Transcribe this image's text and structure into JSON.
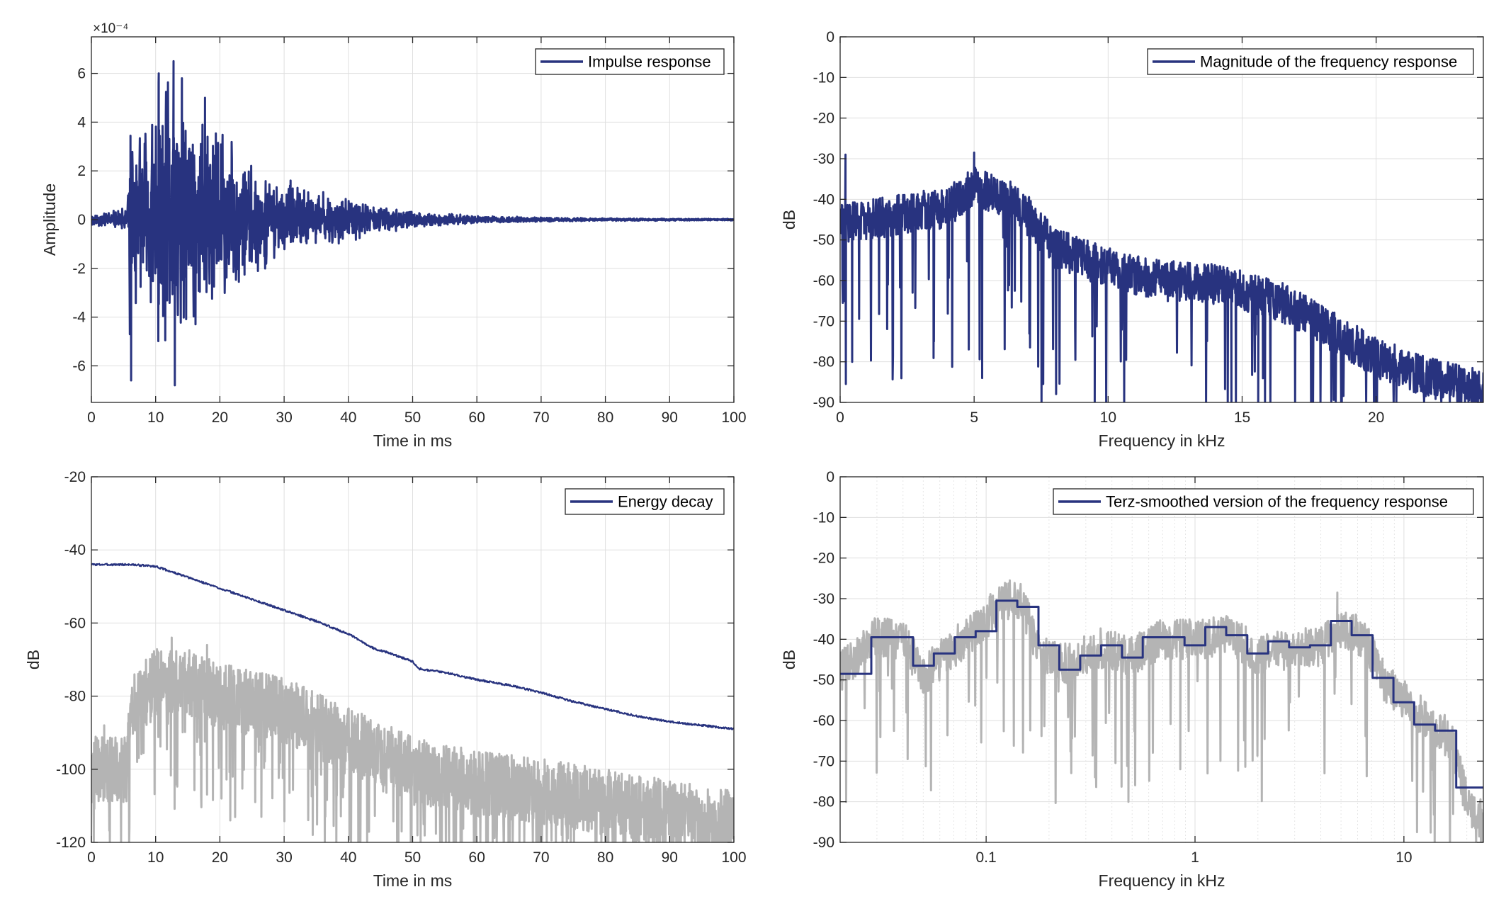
{
  "colors": {
    "primary": "#28337f",
    "secondary": "#b4b4b4",
    "axis": "#262626",
    "grid": "#dfdfdf"
  },
  "chart_data": [
    {
      "id": "impulse",
      "type": "line",
      "title": "",
      "xlabel": "Time in ms",
      "ylabel": "Amplitude",
      "exponent_label": "×10⁻⁴",
      "xlim": [
        0,
        100
      ],
      "ylim": [
        -7.5,
        7.5
      ],
      "xticks": [
        0,
        10,
        20,
        30,
        40,
        50,
        60,
        70,
        80,
        90,
        100
      ],
      "xtick_labels": [
        "0",
        "10",
        "20",
        "30",
        "40",
        "50",
        "60",
        "70",
        "80",
        "90",
        "100"
      ],
      "yticks": [
        -6,
        -4,
        -2,
        0,
        2,
        4,
        6
      ],
      "ytick_labels": [
        "-6",
        "-4",
        "-2",
        "0",
        "2",
        "4",
        "6"
      ],
      "grid": true,
      "legend": {
        "position": "top-right",
        "entries": [
          "Impulse response"
        ]
      },
      "series": [
        {
          "name": "Impulse response",
          "color": "#28337f",
          "style": "noise",
          "seed": 11,
          "samples": 2400,
          "bias": 0.0,
          "noise_min": -7.5,
          "noise_max": 7.5,
          "envelope": [
            [
              0,
              0.3
            ],
            [
              3,
              0.4
            ],
            [
              5.6,
              0.5
            ],
            [
              6,
              4.5
            ],
            [
              8,
              3.8
            ],
            [
              10,
              5.8
            ],
            [
              12.5,
              6.4
            ],
            [
              15,
              5.5
            ],
            [
              18,
              4.6
            ],
            [
              22,
              3.4
            ],
            [
              26,
              2.2
            ],
            [
              30,
              1.7
            ],
            [
              35,
              1.3
            ],
            [
              40,
              1.0
            ],
            [
              45,
              0.6
            ],
            [
              50,
              0.35
            ],
            [
              60,
              0.18
            ],
            [
              70,
              0.1
            ],
            [
              80,
              0.06
            ],
            [
              100,
              0.04
            ]
          ],
          "spikes": [
            [
              6.1,
              -6.6
            ],
            [
              12.7,
              6.5
            ],
            [
              12.9,
              -6.8
            ],
            [
              10.4,
              6.0
            ],
            [
              5.9,
              -4.7
            ],
            [
              14.0,
              5.8
            ],
            [
              17.6,
              5.0
            ]
          ]
        }
      ]
    },
    {
      "id": "magnitude",
      "type": "line",
      "title": "",
      "xlabel": "Frequency in kHz",
      "ylabel": "dB",
      "xlim": [
        0,
        24
      ],
      "ylim": [
        -90,
        0
      ],
      "xticks": [
        0,
        5,
        10,
        15,
        20
      ],
      "xtick_labels": [
        "0",
        "5",
        "10",
        "15",
        "20"
      ],
      "yticks": [
        0,
        -10,
        -20,
        -30,
        -40,
        -50,
        -60,
        -70,
        -80,
        -90
      ],
      "ytick_labels": [
        "0",
        "-10",
        "-20",
        "-30",
        "-40",
        "-50",
        "-60",
        "-70",
        "-80",
        "-90"
      ],
      "grid": true,
      "legend": {
        "position": "top-right",
        "entries": [
          "Magnitude of the frequency response"
        ]
      },
      "series": [
        {
          "name": "Magnitude of the frequency response",
          "color": "#28337f",
          "style": "trend_noise",
          "seed": 29,
          "samples": 1900,
          "trend": [
            [
              0,
              -46
            ],
            [
              2,
              -44
            ],
            [
              4,
              -42
            ],
            [
              5,
              -37
            ],
            [
              6.5,
              -40
            ],
            [
              8,
              -52
            ],
            [
              10,
              -57
            ],
            [
              12,
              -60
            ],
            [
              14,
              -61
            ],
            [
              16,
              -64
            ],
            [
              17,
              -67
            ],
            [
              18,
              -71
            ],
            [
              20,
              -79
            ],
            [
              22,
              -84
            ],
            [
              24,
              -87
            ]
          ],
          "noise_amp": 5,
          "dip_prob": 0.045,
          "dip_depth": [
            12,
            40
          ],
          "spikes": [
            [
              0.2,
              -29
            ],
            [
              5,
              -28.5
            ],
            [
              0.15,
              -65
            ],
            [
              0.45,
              -80
            ],
            [
              3.5,
              -75
            ],
            [
              5.3,
              -84
            ],
            [
              9.5,
              -90
            ],
            [
              14.6,
              -90
            ],
            [
              15.6,
              -90
            ]
          ]
        }
      ]
    },
    {
      "id": "energy_decay",
      "type": "line",
      "title": "",
      "xlabel": "Time in ms",
      "ylabel": "dB",
      "xlim": [
        0,
        100
      ],
      "ylim": [
        -120,
        -20
      ],
      "xticks": [
        0,
        10,
        20,
        30,
        40,
        50,
        60,
        70,
        80,
        90,
        100
      ],
      "xtick_labels": [
        "0",
        "10",
        "20",
        "30",
        "40",
        "50",
        "60",
        "70",
        "80",
        "90",
        "100"
      ],
      "yticks": [
        -20,
        -40,
        -60,
        -80,
        -100,
        -120
      ],
      "ytick_labels": [
        "-20",
        "-40",
        "-60",
        "-80",
        "-100",
        "-120"
      ],
      "grid": true,
      "legend": {
        "position": "top-right",
        "entries": [
          "Energy decay"
        ]
      },
      "series": [
        {
          "name": "",
          "color": "#b4b4b4",
          "style": "trend_noise",
          "seed": 47,
          "samples": 2400,
          "trend": [
            [
              0,
              -100
            ],
            [
              5.5,
              -100
            ],
            [
              6,
              -82
            ],
            [
              10,
              -76
            ],
            [
              15,
              -76
            ],
            [
              20,
              -80
            ],
            [
              30,
              -84
            ],
            [
              40,
              -92
            ],
            [
              50,
              -100
            ],
            [
              60,
              -104
            ],
            [
              70,
              -106
            ],
            [
              80,
              -109
            ],
            [
              90,
              -112
            ],
            [
              100,
              -115
            ]
          ],
          "noise_amp": 9,
          "dip_prob": 0.09,
          "dip_depth": [
            8,
            30
          ],
          "spikes": [
            [
              12.5,
              -64
            ],
            [
              18,
              -66
            ],
            [
              2,
              -88
            ]
          ]
        },
        {
          "name": "Energy decay",
          "color": "#28337f",
          "style": "smooth",
          "seed": 3,
          "samples": 1200,
          "points": [
            [
              0,
              -44
            ],
            [
              6,
              -44
            ],
            [
              10,
              -44.5
            ],
            [
              15,
              -47.5
            ],
            [
              20,
              -50.5
            ],
            [
              25,
              -53.5
            ],
            [
              30,
              -56.5
            ],
            [
              35,
              -59.5
            ],
            [
              40,
              -63
            ],
            [
              42,
              -65
            ],
            [
              44,
              -67
            ],
            [
              46,
              -68
            ],
            [
              50,
              -70.5
            ],
            [
              51,
              -72.5
            ],
            [
              55,
              -73.5
            ],
            [
              60,
              -75.5
            ],
            [
              65,
              -77
            ],
            [
              70,
              -79
            ],
            [
              75,
              -81.5
            ],
            [
              80,
              -83.5
            ],
            [
              85,
              -85.5
            ],
            [
              90,
              -87
            ],
            [
              100,
              -89
            ]
          ],
          "noise_amp": 0.25
        }
      ]
    },
    {
      "id": "terz",
      "type": "line",
      "title": "",
      "xlabel": "Frequency in kHz",
      "ylabel": "dB",
      "xscale": "log",
      "xlim": [
        0.02,
        24
      ],
      "ylim": [
        -90,
        0
      ],
      "xticks": [
        0.1,
        1,
        10
      ],
      "xtick_labels": [
        "0.1",
        "1",
        "10"
      ],
      "yticks": [
        0,
        -10,
        -20,
        -30,
        -40,
        -50,
        -60,
        -70,
        -80,
        -90
      ],
      "ytick_labels": [
        "0",
        "-10",
        "-20",
        "-30",
        "-40",
        "-50",
        "-60",
        "-70",
        "-80",
        "-90"
      ],
      "grid": true,
      "minor_grid": true,
      "legend": {
        "position": "top-right",
        "entries": [
          "Terz-smoothed version of the frequency response"
        ]
      },
      "series": [
        {
          "name": "",
          "color": "#b4b4b4",
          "style": "log_noise",
          "seed": 71,
          "samples": 1600,
          "trend": [
            [
              0.02,
              -48
            ],
            [
              0.03,
              -39
            ],
            [
              0.04,
              -40
            ],
            [
              0.05,
              -49
            ],
            [
              0.07,
              -42
            ],
            [
              0.09,
              -38
            ],
            [
              0.12,
              -30
            ],
            [
              0.15,
              -31
            ],
            [
              0.18,
              -44
            ],
            [
              0.25,
              -46
            ],
            [
              0.35,
              -42
            ],
            [
              0.5,
              -44
            ],
            [
              0.7,
              -40
            ],
            [
              1,
              -40
            ],
            [
              1.5,
              -39
            ],
            [
              2,
              -44
            ],
            [
              3,
              -42
            ],
            [
              4,
              -42
            ],
            [
              5,
              -37
            ],
            [
              6.5,
              -40
            ],
            [
              8,
              -50
            ],
            [
              10,
              -55
            ],
            [
              13,
              -60
            ],
            [
              17,
              -65
            ],
            [
              20,
              -80
            ],
            [
              24,
              -85
            ]
          ],
          "noise_amp": 5,
          "dip_prob": 0.05,
          "dip_depth": [
            10,
            35
          ],
          "spikes": [
            [
              0.48,
              -80
            ],
            [
              0.85,
              -72
            ],
            [
              4.8,
              -28.5
            ]
          ]
        },
        {
          "name": "Terz-smoothed version of the frequency response",
          "color": "#28337f",
          "style": "steps",
          "steps": [
            [
              0.02,
              -48.5
            ],
            [
              0.0282,
              -39.5
            ],
            [
              0.0447,
              -46.5
            ],
            [
              0.0562,
              -43.5
            ],
            [
              0.0708,
              -39.5
            ],
            [
              0.0891,
              -38
            ],
            [
              0.112,
              -30.5
            ],
            [
              0.141,
              -32
            ],
            [
              0.178,
              -41.5
            ],
            [
              0.224,
              -47.5
            ],
            [
              0.282,
              -44
            ],
            [
              0.355,
              -41.5
            ],
            [
              0.447,
              -44.5
            ],
            [
              0.562,
              -39.5
            ],
            [
              0.708,
              -39.5
            ],
            [
              0.891,
              -41.5
            ],
            [
              1.12,
              -37
            ],
            [
              1.41,
              -39
            ],
            [
              1.78,
              -43.5
            ],
            [
              2.24,
              -40.5
            ],
            [
              2.82,
              -42
            ],
            [
              3.55,
              -41.5
            ],
            [
              4.47,
              -35.5
            ],
            [
              5.62,
              -39
            ],
            [
              7.08,
              -49.5
            ],
            [
              8.91,
              -55.5
            ],
            [
              11.2,
              -61
            ],
            [
              14.1,
              -62.5
            ],
            [
              17.8,
              -76.5
            ],
            [
              24,
              -76.5
            ]
          ]
        }
      ]
    }
  ]
}
